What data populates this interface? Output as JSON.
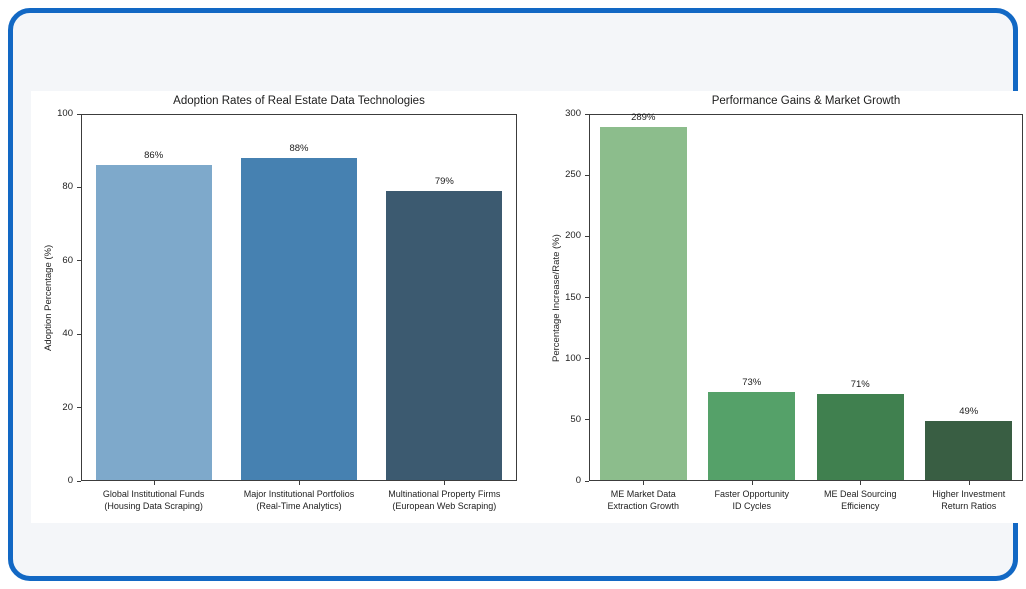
{
  "page": {
    "outer_background": "#ffffff",
    "frame_border_color": "#1268c4",
    "frame_background": "#f4f6f9",
    "figure_background": "#ffffff",
    "axis_color": "#3c3c3c",
    "text_color": "#1c1c1c"
  },
  "chart_data": [
    {
      "type": "bar",
      "title": "Adoption Rates of Real Estate Data Technologies",
      "xlabel": "",
      "ylabel": "Adoption Percentage (%)",
      "ylim": [
        0,
        100
      ],
      "yticks": [
        0,
        20,
        40,
        60,
        80,
        100
      ],
      "grid": false,
      "legend": null,
      "categories": [
        "Global Institutional Funds\n(Housing Data Scraping)",
        "Major Institutional Portfolios\n(Real-Time Analytics)",
        "Multinational Property Firms\n(European Web Scraping)"
      ],
      "values": [
        86,
        88,
        79
      ],
      "value_labels": [
        "86%",
        "88%",
        "79%"
      ],
      "bar_colors": [
        "#7ea9cb",
        "#4681b1",
        "#3c5a70"
      ]
    },
    {
      "type": "bar",
      "title": "Performance Gains & Market Growth",
      "xlabel": "",
      "ylabel": "Percentage Increase/Rate (%)",
      "ylim": [
        0,
        300
      ],
      "yticks": [
        0,
        50,
        100,
        150,
        200,
        250,
        300
      ],
      "grid": false,
      "legend": null,
      "categories": [
        "ME Market Data\nExtraction Growth",
        "Faster Opportunity\nID Cycles",
        "ME Deal Sourcing\nEfficiency",
        "Higher Investment\nReturn Ratios"
      ],
      "values": [
        289,
        73,
        71,
        49
      ],
      "value_labels": [
        "289%",
        "73%",
        "71%",
        "49%"
      ],
      "bar_colors": [
        "#8cbd8c",
        "#55a169",
        "#40804f",
        "#395e43"
      ]
    }
  ]
}
